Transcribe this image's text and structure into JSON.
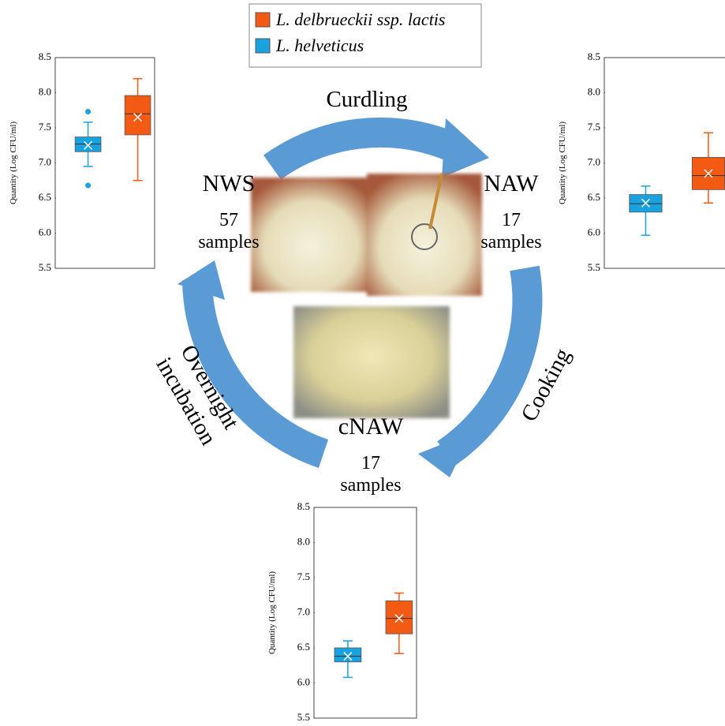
{
  "legend": {
    "items": [
      {
        "name": "L. delbrueckii ssp. lactis",
        "color": "#f35a14"
      },
      {
        "name": "L. helveticus",
        "color": "#1aa2e0"
      }
    ]
  },
  "diagram": {
    "stages": [
      {
        "name": "NWS",
        "count": "57",
        "unit": "samples"
      },
      {
        "name": "NAW",
        "count": "17",
        "unit": "samples"
      },
      {
        "name": "cNAW",
        "count": "17",
        "unit": "samples"
      }
    ],
    "steps": [
      "Curdling",
      "Cooking",
      "Overnight",
      "incubation"
    ]
  },
  "chart_data": [
    {
      "type": "box",
      "y_label": "Quantity (Log CFU/ml)",
      "ylim": [
        5.5,
        8.5
      ],
      "yticks": [
        5.5,
        {
          "value": 6,
          "label": "6.0"
        },
        6.5,
        {
          "value": 7,
          "label": "7.0"
        },
        7.5,
        {
          "value": 8,
          "label": "8.0"
        },
        8.5
      ],
      "series": [
        {
          "legend": 1,
          "low": 6.95,
          "q1": 7.16,
          "median": 7.27,
          "q3": 7.37,
          "high": 7.58,
          "mean": 7.25,
          "outliers": [
            7.73,
            6.68
          ]
        },
        {
          "legend": 0,
          "low": 6.75,
          "q1": 7.4,
          "median": 7.7,
          "q3": 7.96,
          "high": 8.2,
          "mean": 7.65,
          "outliers": []
        }
      ]
    },
    {
      "type": "box",
      "y_label": "Quantity (Log CFU/ml)",
      "ylim": [
        5.5,
        8.5
      ],
      "yticks": [
        5.5,
        {
          "value": 6,
          "label": "6.0"
        },
        6.5,
        {
          "value": 7,
          "label": "7.0"
        },
        7.5,
        {
          "value": 8,
          "label": "8.0"
        },
        8.5
      ],
      "series": [
        {
          "legend": 1,
          "low": 5.97,
          "q1": 6.3,
          "median": 6.42,
          "q3": 6.55,
          "high": 6.67,
          "mean": 6.43,
          "outliers": []
        },
        {
          "legend": 0,
          "low": 6.43,
          "q1": 6.62,
          "median": 6.82,
          "q3": 7.08,
          "high": 7.43,
          "mean": 6.85,
          "outliers": []
        }
      ]
    },
    {
      "type": "box",
      "y_label": "Quantity (Log CFU/ml)",
      "ylim": [
        5.5,
        8.5
      ],
      "yticks": [
        5.5,
        {
          "value": 6,
          "label": "6.0"
        },
        6.5,
        {
          "value": 7,
          "label": "7.0"
        },
        7.5,
        {
          "value": 8,
          "label": "8.0"
        },
        8.5
      ],
      "series": [
        {
          "legend": 1,
          "low": 6.08,
          "q1": 6.3,
          "median": 6.38,
          "q3": 6.5,
          "high": 6.6,
          "mean": 6.38,
          "outliers": []
        },
        {
          "legend": 0,
          "low": 6.42,
          "q1": 6.7,
          "median": 6.92,
          "q3": 7.17,
          "high": 7.28,
          "mean": 6.92,
          "outliers": []
        }
      ]
    }
  ]
}
